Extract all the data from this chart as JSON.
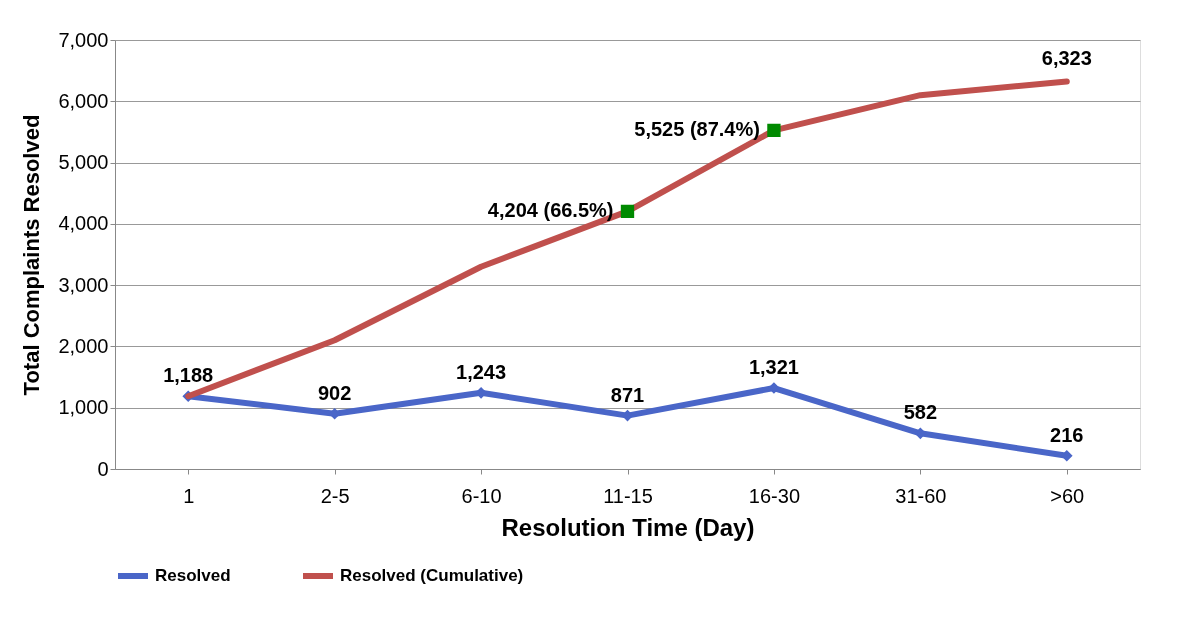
{
  "chart_data": {
    "type": "line",
    "xlabel": "Resolution Time (Day)",
    "ylabel": "Total Complaints Resolved",
    "categories": [
      "1",
      "2-5",
      "6-10",
      "11-15",
      "16-30",
      "31-60",
      ">60"
    ],
    "series": [
      {
        "name": "Resolved",
        "color": "#4a66c8",
        "marker": "diamond",
        "values": [
          1188,
          902,
          1243,
          871,
          1321,
          582,
          216
        ],
        "value_labels": [
          "1,188",
          "902",
          "1,243",
          "871",
          "1,321",
          "582",
          "216"
        ]
      },
      {
        "name": "Resolved (Cumulative)",
        "color": "#c0504d",
        "marker": "none",
        "values": [
          1188,
          2100,
          3300,
          4204,
          5525,
          6100,
          6323
        ]
      },
      {
        "type": "scatter",
        "color": "#008a00",
        "marker": "square",
        "values": [
          null,
          null,
          null,
          4204,
          5525,
          null,
          null
        ]
      }
    ],
    "annotations": [
      {
        "text": "4,204 (66.5%)",
        "x": "11-15",
        "y": 4204
      },
      {
        "text": "5,525 (87.4%)",
        "x": "16-30",
        "y": 5525
      },
      {
        "text": "6,323",
        "x": ">60",
        "y": 6323
      }
    ],
    "ylim": [
      0,
      7000
    ],
    "yticks": [
      0,
      {
        "value": 1000,
        "label": "1,000"
      },
      {
        "value": 2000,
        "label": "2,000"
      },
      {
        "value": 3000,
        "label": "3,000"
      },
      {
        "value": 4000,
        "label": "4,000"
      },
      {
        "value": 5000,
        "label": "5,000"
      },
      {
        "value": 6000,
        "label": "6,000"
      },
      {
        "value": 7000,
        "label": "7,000"
      }
    ],
    "grid": "y",
    "legend": "bottom",
    "line_style": "solid"
  }
}
